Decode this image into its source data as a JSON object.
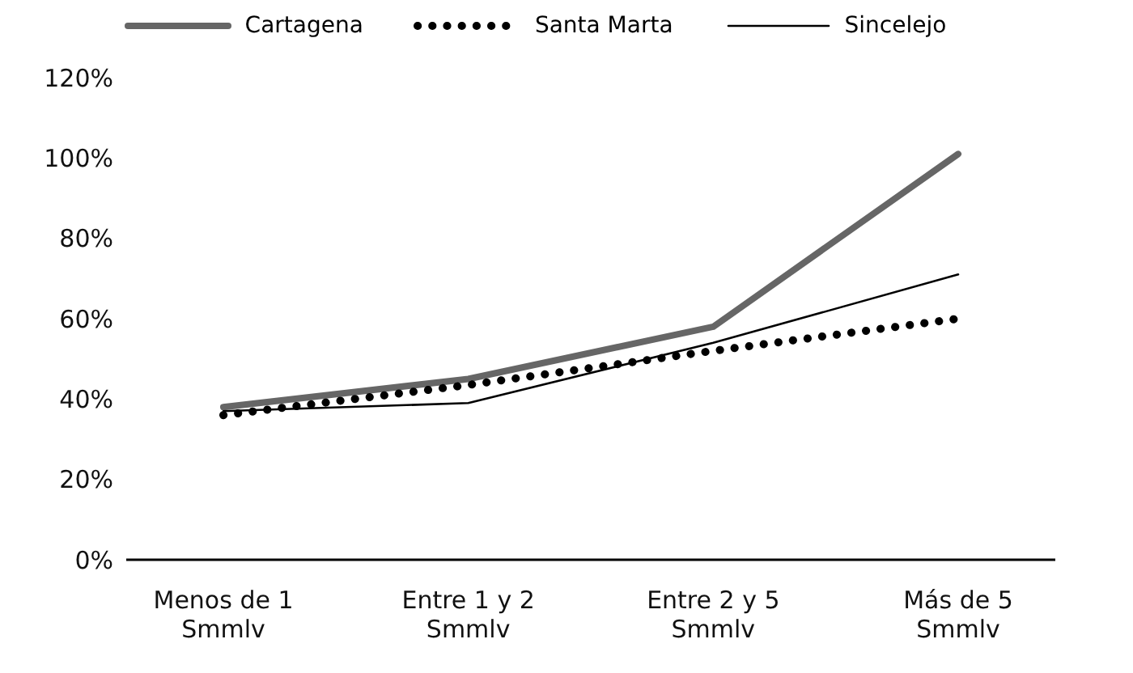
{
  "chart_data": {
    "type": "line",
    "categories": [
      "Menos de 1 Smmlv",
      "Entre 1 y 2 Smmlv",
      "Entre 2 y 5 Smmlv",
      "Más de 5 Smmlv"
    ],
    "series": [
      {
        "name": "Cartagena",
        "color": "#666666",
        "values": [
          38,
          45,
          58,
          101
        ],
        "line_style": "solid"
      },
      {
        "name": "Santa Marta",
        "color": "#000000",
        "values": [
          36,
          43.5,
          52,
          60
        ],
        "line_style": "dotted"
      },
      {
        "name": "Sincelejo",
        "color": "#000000",
        "values": [
          37,
          39,
          54,
          71
        ],
        "line_style": "solid"
      }
    ],
    "ylim": [
      0,
      120
    ],
    "yticks": [
      {
        "value": 0,
        "label": "0%"
      },
      {
        "value": 20,
        "label": "20%"
      },
      {
        "value": 40,
        "label": "40%"
      },
      {
        "value": 60,
        "label": "60%"
      },
      {
        "value": 80,
        "label": "80%"
      },
      {
        "value": 100,
        "label": "100%"
      },
      {
        "value": 120,
        "label": "120%"
      }
    ],
    "grid": false,
    "legend": "top",
    "marker": "none"
  }
}
